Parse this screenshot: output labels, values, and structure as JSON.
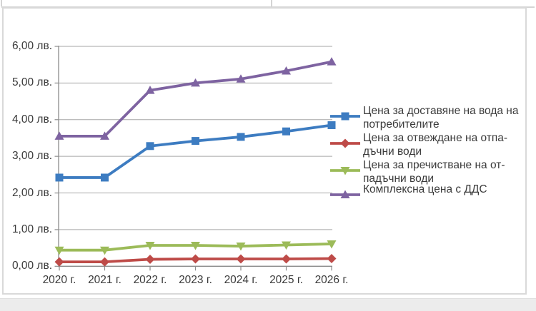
{
  "page": {
    "background_color": "#ffffff",
    "outside_strip_color": "#ececec",
    "frame_border_color": "#d9d9d9"
  },
  "chart_data": {
    "type": "line",
    "title": "",
    "xlabel": "",
    "ylabel": "",
    "categories": [
      "2020 г.",
      "2021 г.",
      "2022 г.",
      "2023 г.",
      "2024 г.",
      "2025 г.",
      "2026 г."
    ],
    "y_ticks": [
      "6,00 лв.",
      "5,00 лв.",
      "4,00 лв.",
      "3,00 лв.",
      "2,00 лв.",
      "1,00 лв.",
      "0,00 лв."
    ],
    "ylim": [
      0,
      6
    ],
    "y_step": 1,
    "grid": true,
    "legend_position": "right",
    "currency_unit": "лв.",
    "axis": {
      "grid_color": "#a6a6a6",
      "line_color": "#8c8c8c",
      "label_color": "#3a3a3a"
    },
    "series": [
      {
        "id": "dostavyane",
        "name": "Цена за доставяне на вода на потребителите",
        "label_lines": [
          "Цена за доставяне на вода на",
          "потребителите"
        ],
        "color": "#3d7cc1",
        "marker": "square",
        "values": [
          2.42,
          2.42,
          3.28,
          3.42,
          3.53,
          3.68,
          3.85
        ]
      },
      {
        "id": "otvezhdane",
        "name": "Цена за отвеждане на отпадъчни води",
        "label_lines": [
          "Цена за отвеждане на отпа-",
          "дъчни води"
        ],
        "color": "#be4b48",
        "marker": "diamond",
        "values": [
          0.12,
          0.12,
          0.19,
          0.2,
          0.2,
          0.2,
          0.21
        ]
      },
      {
        "id": "prechistvane",
        "name": "Цена за пречистване на отпадъчни води",
        "label_lines": [
          "Цена за пречистване на от-",
          "падъчни води"
        ],
        "color": "#9cbb59",
        "marker": "triangle-down",
        "values": [
          0.44,
          0.44,
          0.57,
          0.57,
          0.55,
          0.58,
          0.61
        ]
      },
      {
        "id": "kompleksna",
        "name": "Комплексна цена с ДДС",
        "label_lines": [
          "Комплексна цена с ДДС"
        ],
        "color": "#7e63a1",
        "marker": "triangle-up",
        "values": [
          3.55,
          3.55,
          4.8,
          5.0,
          5.11,
          5.33,
          5.58
        ]
      }
    ]
  }
}
